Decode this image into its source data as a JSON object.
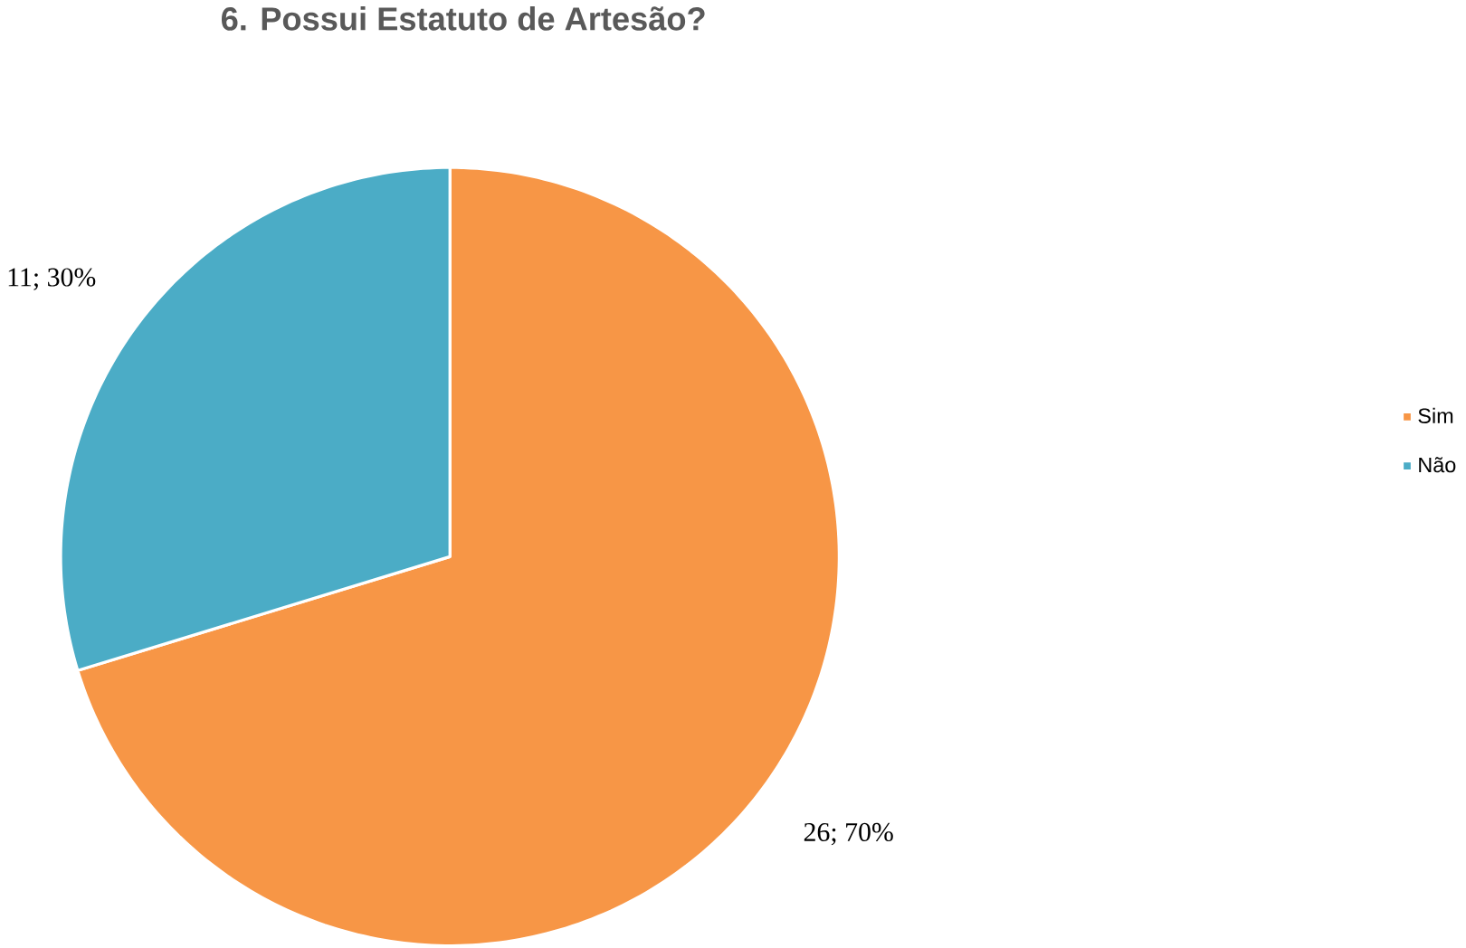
{
  "chart_data": {
    "type": "pie",
    "title": "6. Possui Estatuto de Artesão?",
    "categories": [
      "Sim",
      "Não"
    ],
    "values": [
      26,
      11
    ],
    "value_labels": [
      "26; 70%",
      "11; 30%"
    ],
    "colors": [
      "#f79646",
      "#4bacc6"
    ],
    "legend": "right"
  }
}
